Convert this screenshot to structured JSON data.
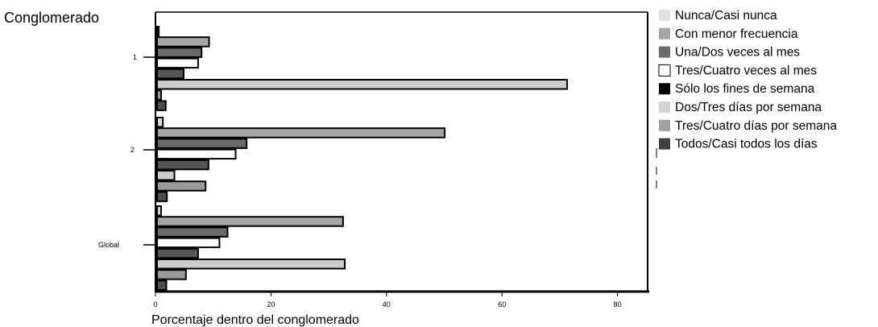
{
  "chart_data": {
    "type": "bar",
    "orientation": "horizontal",
    "ylabel": "Conglomerado",
    "xlabel": "Porcentaje dentro del conglomerado",
    "xlim": [
      0,
      85
    ],
    "x_ticks": [
      0,
      20,
      40,
      60,
      80
    ],
    "categories": [
      "1",
      "2",
      "Global"
    ],
    "legend_position": "right",
    "grid": false,
    "series": [
      {
        "name": "Nunca/Casi nunca",
        "color": "#d9d9d9",
        "values": [
          0.3,
          1.0,
          0.7
        ]
      },
      {
        "name": "Con menor frecuencia",
        "color": "#a6a6a6",
        "values": [
          9.0,
          49.8,
          32.2
        ]
      },
      {
        "name": "Una/Dos veces al mes",
        "color": "#6b6b6b",
        "values": [
          7.7,
          15.5,
          12.2
        ]
      },
      {
        "name": "Tres/Cuatro veces al mes",
        "color": "#ffffff",
        "values": [
          7.1,
          13.6,
          10.8
        ]
      },
      {
        "name": "Sólo los fines de semana",
        "color": "#555555",
        "values": [
          4.6,
          8.9,
          7.1
        ]
      },
      {
        "name": "Dos/Tres días por semana",
        "color": "#cccccc",
        "values": [
          71.0,
          3.0,
          32.5
        ]
      },
      {
        "name": "Tres/Cuatro días por semana",
        "color": "#9a9a9a",
        "values": [
          0.7,
          8.4,
          5.0
        ]
      },
      {
        "name": "Todos/Casi todos los días",
        "color": "#505050",
        "values": [
          1.5,
          1.7,
          1.6
        ]
      }
    ],
    "legend_colors": [
      "#e0e0e0",
      "#a6a6a6",
      "#6b6b6b",
      "#ffffff",
      "#000000",
      "#d4d4d4",
      "#a0a0a0",
      "#404040"
    ]
  }
}
